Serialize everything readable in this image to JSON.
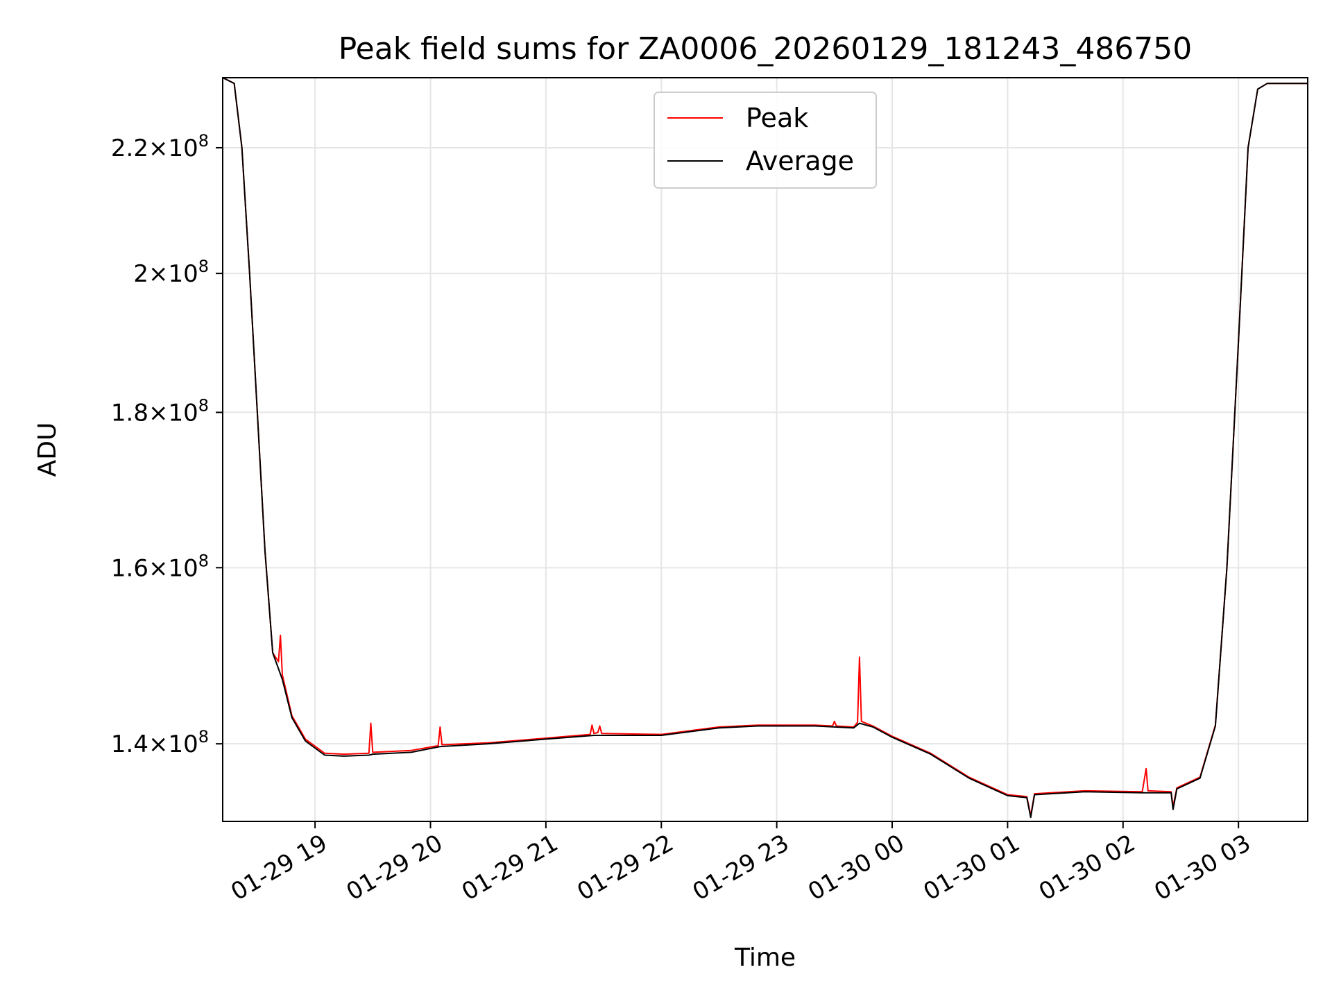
{
  "chart_data": {
    "type": "line",
    "title": "Peak field sums for ZA0006_20260129_181243_486750",
    "xlabel": "Time",
    "ylabel": "ADU",
    "y_scale": "log",
    "grid": true,
    "legend_position": "upper center",
    "xlim": [
      "2026-01-29 18:12",
      "2026-01-30 03:36"
    ],
    "ylim": [
      132000000,
      232000000
    ],
    "x_ticks": [
      {
        "time": "2026-01-29 19:00",
        "label": "01-29 19"
      },
      {
        "time": "2026-01-29 20:00",
        "label": "01-29 20"
      },
      {
        "time": "2026-01-29 21:00",
        "label": "01-29 21"
      },
      {
        "time": "2026-01-29 22:00",
        "label": "01-29 22"
      },
      {
        "time": "2026-01-29 23:00",
        "label": "01-29 23"
      },
      {
        "time": "2026-01-30 00:00",
        "label": "01-30 00"
      },
      {
        "time": "2026-01-30 01:00",
        "label": "01-30 01"
      },
      {
        "time": "2026-01-30 02:00",
        "label": "01-30 02"
      },
      {
        "time": "2026-01-30 03:00",
        "label": "01-30 03"
      }
    ],
    "y_ticks": [
      {
        "value": 140000000,
        "mantissa": "1.4",
        "exponent": "8"
      },
      {
        "value": 160000000,
        "mantissa": "1.6",
        "exponent": "8"
      },
      {
        "value": 180000000,
        "mantissa": "1.8",
        "exponent": "8"
      },
      {
        "value": 200000000,
        "mantissa": "2",
        "exponent": "8"
      },
      {
        "value": 220000000,
        "mantissa": "2.2",
        "exponent": "8"
      }
    ],
    "series": [
      {
        "name": "Peak",
        "color": "#ff0000",
        "points": [
          [
            "2026-01-29 18:12",
            232000000
          ],
          [
            "2026-01-29 18:18",
            231000000
          ],
          [
            "2026-01-29 18:22",
            220000000
          ],
          [
            "2026-01-29 18:26",
            200000000
          ],
          [
            "2026-01-29 18:30",
            180000000
          ],
          [
            "2026-01-29 18:34",
            162000000
          ],
          [
            "2026-01-29 18:38",
            150000000
          ],
          [
            "2026-01-29 18:41",
            149000000
          ],
          [
            "2026-01-29 18:42",
            152000000
          ],
          [
            "2026-01-29 18:43",
            147500000
          ],
          [
            "2026-01-29 18:48",
            143000000
          ],
          [
            "2026-01-29 18:55",
            140500000
          ],
          [
            "2026-01-29 19:05",
            139000000
          ],
          [
            "2026-01-29 19:15",
            138900000
          ],
          [
            "2026-01-29 19:28",
            139000000
          ],
          [
            "2026-01-29 19:29",
            142200000
          ],
          [
            "2026-01-29 19:30",
            139100000
          ],
          [
            "2026-01-29 19:50",
            139300000
          ],
          [
            "2026-01-29 20:04",
            139800000
          ],
          [
            "2026-01-29 20:05",
            141800000
          ],
          [
            "2026-01-29 20:06",
            139900000
          ],
          [
            "2026-01-29 20:30",
            140100000
          ],
          [
            "2026-01-29 21:00",
            140600000
          ],
          [
            "2026-01-29 21:23",
            141000000
          ],
          [
            "2026-01-29 21:24",
            142000000
          ],
          [
            "2026-01-29 21:25",
            141100000
          ],
          [
            "2026-01-29 21:27",
            141200000
          ],
          [
            "2026-01-29 21:28",
            141900000
          ],
          [
            "2026-01-29 21:29",
            141100000
          ],
          [
            "2026-01-29 22:00",
            141000000
          ],
          [
            "2026-01-29 22:30",
            141800000
          ],
          [
            "2026-01-29 22:50",
            142000000
          ],
          [
            "2026-01-29 23:00",
            142000000
          ],
          [
            "2026-01-29 23:20",
            142000000
          ],
          [
            "2026-01-29 23:29",
            141900000
          ],
          [
            "2026-01-29 23:30",
            142400000
          ],
          [
            "2026-01-29 23:31",
            141900000
          ],
          [
            "2026-01-29 23:40",
            141800000
          ],
          [
            "2026-01-29 23:42",
            142300000
          ],
          [
            "2026-01-29 23:43",
            149500000
          ],
          [
            "2026-01-29 23:44",
            142400000
          ],
          [
            "2026-01-29 23:50",
            141900000
          ],
          [
            "2026-01-30 00:00",
            140800000
          ],
          [
            "2026-01-30 00:20",
            139000000
          ],
          [
            "2026-01-30 00:40",
            136500000
          ],
          [
            "2026-01-30 01:00",
            134700000
          ],
          [
            "2026-01-30 01:10",
            134500000
          ],
          [
            "2026-01-30 01:12",
            132600000
          ],
          [
            "2026-01-30 01:14",
            134800000
          ],
          [
            "2026-01-30 01:40",
            135100000
          ],
          [
            "2026-01-30 02:10",
            135000000
          ],
          [
            "2026-01-30 02:12",
            137400000
          ],
          [
            "2026-01-30 02:13",
            135100000
          ],
          [
            "2026-01-30 02:25",
            135000000
          ],
          [
            "2026-01-30 02:26",
            133500000
          ],
          [
            "2026-01-30 02:28",
            135400000
          ],
          [
            "2026-01-30 02:40",
            136500000
          ],
          [
            "2026-01-30 02:48",
            142000000
          ],
          [
            "2026-01-30 02:54",
            160000000
          ],
          [
            "2026-01-30 03:00",
            190000000
          ],
          [
            "2026-01-30 03:05",
            220000000
          ],
          [
            "2026-01-30 03:10",
            230000000
          ],
          [
            "2026-01-30 03:15",
            231000000
          ],
          [
            "2026-01-30 03:36",
            231000000
          ]
        ]
      },
      {
        "name": "Average",
        "color": "#000000",
        "points": [
          [
            "2026-01-29 18:12",
            232000000
          ],
          [
            "2026-01-29 18:18",
            231000000
          ],
          [
            "2026-01-29 18:22",
            220000000
          ],
          [
            "2026-01-29 18:26",
            200000000
          ],
          [
            "2026-01-29 18:30",
            180000000
          ],
          [
            "2026-01-29 18:34",
            162000000
          ],
          [
            "2026-01-29 18:38",
            150000000
          ],
          [
            "2026-01-29 18:43",
            147000000
          ],
          [
            "2026-01-29 18:48",
            142800000
          ],
          [
            "2026-01-29 18:55",
            140300000
          ],
          [
            "2026-01-29 19:05",
            138800000
          ],
          [
            "2026-01-29 19:15",
            138700000
          ],
          [
            "2026-01-29 19:28",
            138800000
          ],
          [
            "2026-01-29 19:30",
            138900000
          ],
          [
            "2026-01-29 19:50",
            139100000
          ],
          [
            "2026-01-29 20:05",
            139700000
          ],
          [
            "2026-01-29 20:30",
            140000000
          ],
          [
            "2026-01-29 21:00",
            140500000
          ],
          [
            "2026-01-29 21:25",
            140900000
          ],
          [
            "2026-01-29 22:00",
            140900000
          ],
          [
            "2026-01-29 22:30",
            141700000
          ],
          [
            "2026-01-29 22:50",
            141900000
          ],
          [
            "2026-01-29 23:00",
            141900000
          ],
          [
            "2026-01-29 23:20",
            141900000
          ],
          [
            "2026-01-29 23:40",
            141700000
          ],
          [
            "2026-01-29 23:43",
            142200000
          ],
          [
            "2026-01-29 23:50",
            141800000
          ],
          [
            "2026-01-30 00:00",
            140700000
          ],
          [
            "2026-01-30 00:20",
            138900000
          ],
          [
            "2026-01-30 00:40",
            136400000
          ],
          [
            "2026-01-30 01:00",
            134600000
          ],
          [
            "2026-01-30 01:10",
            134400000
          ],
          [
            "2026-01-30 01:12",
            132400000
          ],
          [
            "2026-01-30 01:14",
            134700000
          ],
          [
            "2026-01-30 01:40",
            135000000
          ],
          [
            "2026-01-30 02:10",
            134900000
          ],
          [
            "2026-01-30 02:25",
            134900000
          ],
          [
            "2026-01-30 02:26",
            133200000
          ],
          [
            "2026-01-30 02:28",
            135300000
          ],
          [
            "2026-01-30 02:40",
            136400000
          ],
          [
            "2026-01-30 02:48",
            141900000
          ],
          [
            "2026-01-30 02:54",
            160000000
          ],
          [
            "2026-01-30 03:00",
            190000000
          ],
          [
            "2026-01-30 03:05",
            220000000
          ],
          [
            "2026-01-30 03:10",
            230000000
          ],
          [
            "2026-01-30 03:15",
            231000000
          ],
          [
            "2026-01-30 03:36",
            231000000
          ]
        ]
      }
    ]
  }
}
